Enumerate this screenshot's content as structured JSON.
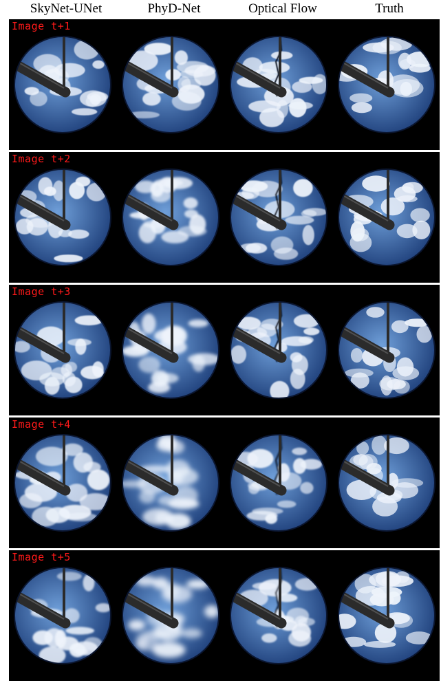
{
  "columns": [
    "SkyNet-UNet",
    "PhyD-Net",
    "Optical Flow",
    "Truth"
  ],
  "rows": [
    {
      "label": "Image t+1",
      "blur": [
        0.4,
        0.8,
        0.5,
        0.3
      ]
    },
    {
      "label": "Image t+2",
      "blur": [
        0.6,
        1.6,
        0.7,
        0.3
      ]
    },
    {
      "label": "Image t+3",
      "blur": [
        0.8,
        2.4,
        0.9,
        0.3
      ]
    },
    {
      "label": "Image t+4",
      "blur": [
        1.0,
        3.2,
        1.0,
        0.3
      ]
    },
    {
      "label": "Image t+5",
      "blur": [
        1.2,
        4.0,
        1.1,
        0.3
      ]
    }
  ],
  "colors": {
    "sky_center": "#6f9fd9",
    "sky_edge": "#1e3f7a",
    "cloud": "#eef3fb",
    "arm": "#2b2b2b",
    "label": "#ff1a1a"
  },
  "icons": {
    "panel_content": "all-sky-fisheye-image"
  }
}
